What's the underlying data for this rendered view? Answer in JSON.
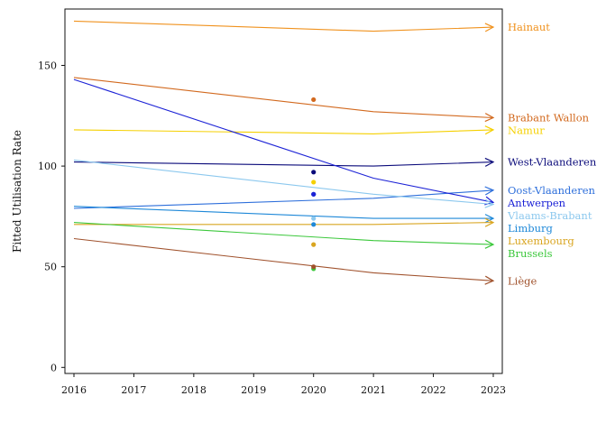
{
  "chart_data": {
    "type": "line",
    "title": "",
    "xlabel": "",
    "ylabel": "Fitted Utilisation Rate",
    "xlim": [
      2016,
      2023
    ],
    "ylim": [
      -3,
      178
    ],
    "x_ticks": [
      2016,
      2017,
      2018,
      2019,
      2020,
      2021,
      2022,
      2023
    ],
    "y_ticks": [
      0,
      50,
      100,
      150
    ],
    "grid": false,
    "legend": "none (series labeled at right end of lines)",
    "line_end_marker": "arrow",
    "series": [
      {
        "name": "Hainaut",
        "color": "#F0921E",
        "x": [
          2016,
          2021,
          2023
        ],
        "values": [
          172,
          167,
          169
        ],
        "point_2020": null
      },
      {
        "name": "Brabant Wallon",
        "color": "#D2691E",
        "x": [
          2016,
          2021,
          2023
        ],
        "values": [
          144,
          127,
          124
        ],
        "point_2020": 133
      },
      {
        "name": "Namur",
        "color": "#F5D000",
        "x": [
          2016,
          2021,
          2023
        ],
        "values": [
          118,
          116,
          118
        ],
        "point_2020": 92
      },
      {
        "name": "West-Vlaanderen",
        "color": "#0A0A7A",
        "x": [
          2016,
          2021,
          2023
        ],
        "values": [
          102,
          100,
          102
        ],
        "point_2020": 97
      },
      {
        "name": "Oost-Vlaanderen",
        "color": "#2E6FDB",
        "x": [
          2016,
          2021,
          2023
        ],
        "values": [
          79,
          84,
          88
        ],
        "point_2020": 86
      },
      {
        "name": "Antwerpen",
        "color": "#1C22D6",
        "x": [
          2016,
          2021,
          2023
        ],
        "values": [
          143,
          94,
          82
        ],
        "point_2020": 86
      },
      {
        "name": "Vlaams-Brabant",
        "color": "#8CC8EE",
        "x": [
          2016,
          2021,
          2023
        ],
        "values": [
          103,
          86,
          81
        ],
        "point_2020": 74
      },
      {
        "name": "Limburg",
        "color": "#1E88D8",
        "x": [
          2016,
          2021,
          2023
        ],
        "values": [
          80,
          74,
          74
        ],
        "point_2020": 71
      },
      {
        "name": "Luxembourg",
        "color": "#D9A520",
        "x": [
          2016,
          2021,
          2023
        ],
        "values": [
          71,
          71,
          72
        ],
        "point_2020": 61
      },
      {
        "name": "Brussels",
        "color": "#3CC83C",
        "x": [
          2016,
          2021,
          2023
        ],
        "values": [
          72,
          63,
          61
        ],
        "point_2020": 49
      },
      {
        "name": "Liège",
        "color": "#A0522D",
        "x": [
          2016,
          2021,
          2023
        ],
        "values": [
          64,
          47,
          43
        ],
        "point_2020": 50
      }
    ]
  }
}
